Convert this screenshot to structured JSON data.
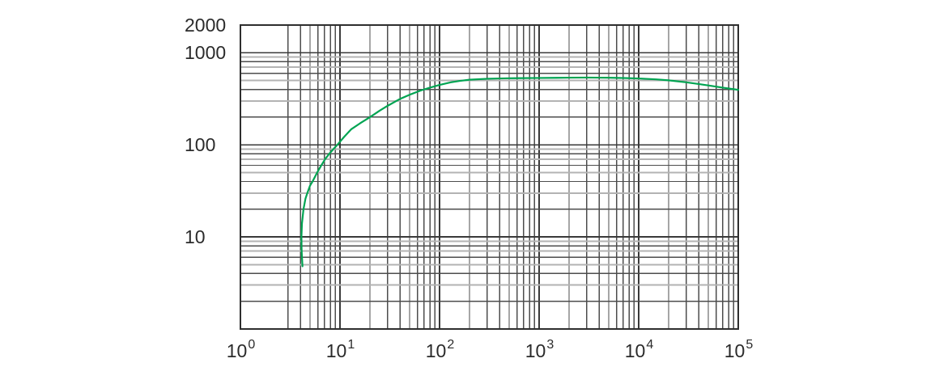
{
  "chart_data": {
    "type": "line",
    "x_scale": "log",
    "y_scale": "log",
    "x_range": [
      1,
      100000
    ],
    "y_range": [
      1,
      2000
    ],
    "grid": {
      "border_color": "#2e2e2e",
      "major_color": "#3a3a3a",
      "minor_dark_color": "#4d4d4d",
      "minor_light_color": "#b3b3b3",
      "x_first_decade_skip_minor": 2
    },
    "x_ticks": [
      {
        "base": "10",
        "exp": "0",
        "value": 1
      },
      {
        "base": "10",
        "exp": "1",
        "value": 10
      },
      {
        "base": "10",
        "exp": "2",
        "value": 100
      },
      {
        "base": "10",
        "exp": "3",
        "value": 1000
      },
      {
        "base": "10",
        "exp": "4",
        "value": 10000
      },
      {
        "base": "10",
        "exp": "5",
        "value": 100000
      }
    ],
    "y_ticks": [
      {
        "label": "2000",
        "value": 2000
      },
      {
        "label": "1000",
        "value": 1000
      },
      {
        "label": "100",
        "value": 100
      },
      {
        "label": "10",
        "value": 10
      }
    ],
    "series": [
      {
        "name": "green-curve",
        "color": "#00a452",
        "points": [
          [
            4.2,
            4.8
          ],
          [
            4.12,
            7
          ],
          [
            4.1,
            10
          ],
          [
            4.15,
            14
          ],
          [
            4.3,
            20
          ],
          [
            4.5,
            26
          ],
          [
            4.7,
            30
          ],
          [
            5.0,
            36
          ],
          [
            5.3,
            40
          ],
          [
            5.9,
            50
          ],
          [
            6.5,
            60
          ],
          [
            7.1,
            70
          ],
          [
            7.8,
            80
          ],
          [
            8.6,
            90
          ],
          [
            9.4,
            100
          ],
          [
            11,
            122
          ],
          [
            13,
            148
          ],
          [
            16,
            172
          ],
          [
            20,
            200
          ],
          [
            25,
            235
          ],
          [
            30,
            265
          ],
          [
            40,
            315
          ],
          [
            50,
            350
          ],
          [
            65,
            390
          ],
          [
            80,
            418
          ],
          [
            100,
            448
          ],
          [
            130,
            478
          ],
          [
            160,
            495
          ],
          [
            200,
            510
          ],
          [
            300,
            522
          ],
          [
            400,
            526
          ],
          [
            500,
            529
          ],
          [
            700,
            531
          ],
          [
            1000,
            533
          ],
          [
            1500,
            535
          ],
          [
            2000,
            537
          ],
          [
            3000,
            538
          ],
          [
            4000,
            537
          ],
          [
            5000,
            536
          ],
          [
            7000,
            532
          ],
          [
            10000,
            526
          ],
          [
            15000,
            514
          ],
          [
            20000,
            502
          ],
          [
            30000,
            478
          ],
          [
            40000,
            458
          ],
          [
            50000,
            442
          ],
          [
            70000,
            418
          ],
          [
            100000,
            396
          ]
        ]
      }
    ]
  }
}
